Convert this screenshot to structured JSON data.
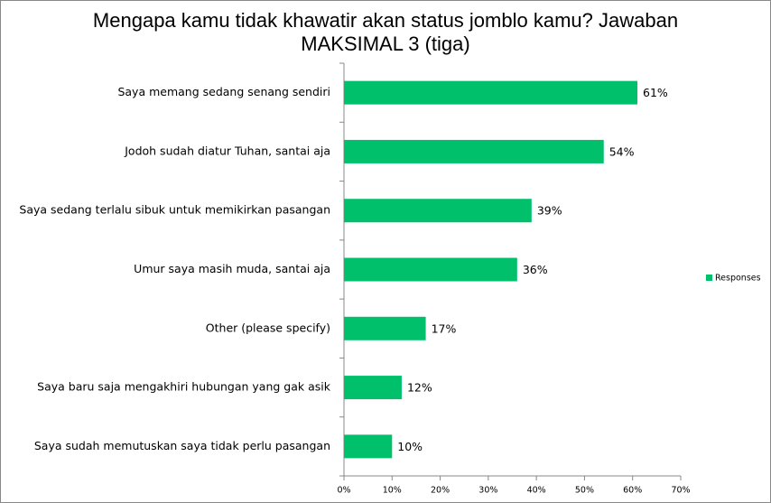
{
  "chart_data": {
    "type": "bar",
    "orientation": "horizontal",
    "title": "Mengapa kamu tidak khawatir akan status jomblo kamu? Jawaban MAKSIMAL 3 (tiga)",
    "categories": [
      "Saya memang sedang senang sendiri",
      "Jodoh sudah diatur Tuhan, santai aja",
      "Saya sedang terlalu sibuk untuk memikirkan pasangan",
      "Umur saya masih muda, santai aja",
      "Other (please specify)",
      "Saya baru saja mengakhiri hubungan yang gak asik",
      "Saya sudah memutuskan saya tidak perlu pasangan"
    ],
    "series": [
      {
        "name": "Responses",
        "color": "#00c06b",
        "values": [
          61,
          54,
          39,
          36,
          17,
          12,
          10
        ],
        "value_labels": [
          "61%",
          "54%",
          "39%",
          "36%",
          "17%",
          "12%",
          "10%"
        ]
      }
    ],
    "xlim": [
      0,
      70
    ],
    "xticks": [
      {
        "value": 0,
        "label": "0%"
      },
      {
        "value": 10,
        "label": "10%"
      },
      {
        "value": 20,
        "label": "20%"
      },
      {
        "value": 30,
        "label": "30%"
      },
      {
        "value": 40,
        "label": "40%"
      },
      {
        "value": 50,
        "label": "50%"
      },
      {
        "value": 60,
        "label": "60%"
      },
      {
        "value": 70,
        "label": "70%"
      }
    ],
    "grid": false,
    "legend": "right"
  }
}
